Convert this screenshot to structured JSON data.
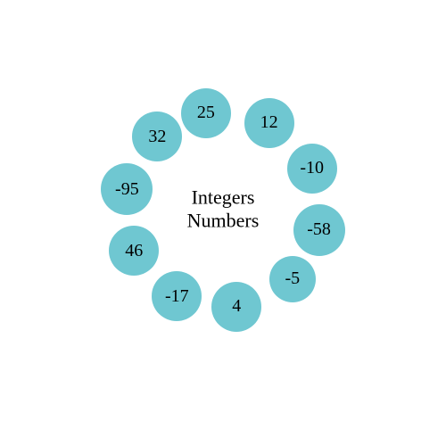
{
  "diagram": {
    "type": "infographic",
    "title_line1": "Integers",
    "title_line2": "Numbers",
    "title_fontsize": 22,
    "title_color": "#000000",
    "background_color": "#ffffff",
    "circle_color": "#6fc7d1",
    "number_color": "#000000",
    "number_fontsize": 20,
    "ring_radius": 110,
    "circles": [
      {
        "value": "25",
        "angle": -100,
        "size": 56
      },
      {
        "value": "12",
        "angle": -62,
        "size": 56
      },
      {
        "value": "-10",
        "angle": -25,
        "size": 56
      },
      {
        "value": "-58",
        "angle": 12,
        "size": 58
      },
      {
        "value": "-5",
        "angle": 45,
        "size": 52
      },
      {
        "value": "4",
        "angle": 82,
        "size": 56
      },
      {
        "value": "-17",
        "angle": 118,
        "size": 56
      },
      {
        "value": "46",
        "angle": 155,
        "size": 56
      },
      {
        "value": "-95",
        "angle": 192,
        "size": 58
      },
      {
        "value": "32",
        "angle": 228,
        "size": 56
      }
    ]
  }
}
